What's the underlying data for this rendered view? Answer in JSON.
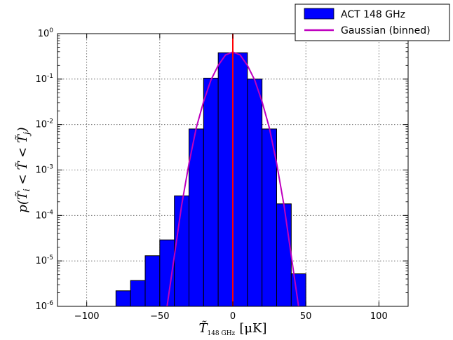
{
  "chart_data": {
    "type": "bar",
    "xlabel": {
      "main": "T̃",
      "sub": "148 GHz",
      "unit": "[μK]"
    },
    "ylabel": {
      "main": "p(T̃",
      "sub1": "i",
      "mid": " < T̃ < T̃",
      "sub2": "j",
      "end": ")"
    },
    "xlim": [
      -120,
      120
    ],
    "ylim_log10": [
      -6,
      0
    ],
    "log_y": true,
    "grid": true,
    "legend_position": "top-right",
    "x_ticks": [
      {
        "value": -100,
        "label": "−100"
      },
      {
        "value": -50,
        "label": "−50"
      },
      {
        "value": 0,
        "label": "0"
      },
      {
        "value": 50,
        "label": "50"
      },
      {
        "value": 100,
        "label": "100"
      }
    ],
    "y_ticks": [
      {
        "exp": -6,
        "base": "10",
        "power": "-6"
      },
      {
        "exp": -5,
        "base": "10",
        "power": "-5"
      },
      {
        "exp": -4,
        "base": "10",
        "power": "-4"
      },
      {
        "exp": -3,
        "base": "10",
        "power": "-3"
      },
      {
        "exp": -2,
        "base": "10",
        "power": "-2"
      },
      {
        "exp": -1,
        "base": "10",
        "power": "-1"
      },
      {
        "exp": 0,
        "base": "10",
        "power": "0"
      }
    ],
    "histogram": {
      "name": "ACT 148 GHz",
      "color": "#0000ff",
      "bin_edges": [
        -80,
        -70,
        -60,
        -50,
        -40,
        -30,
        -20,
        -10,
        0,
        10,
        20,
        30,
        40,
        50
      ],
      "values": [
        2.2e-06,
        3.7e-06,
        1.3e-05,
        2.9e-05,
        0.00027,
        0.008,
        0.105,
        0.38,
        0.38,
        0.1,
        0.008,
        0.00018,
        5.2e-06
      ]
    },
    "gaussian": {
      "name": "Gaussian (binned)",
      "color": "#bf00bf",
      "x": [
        -45,
        -40,
        -35,
        -30,
        -25,
        -20,
        -15,
        -10,
        -5,
        0,
        5,
        10,
        15,
        20,
        25,
        30,
        35,
        40,
        45
      ],
      "y": [
        1e-06,
        1.3e-05,
        0.00017,
        0.0014,
        0.0085,
        0.032,
        0.095,
        0.2,
        0.34,
        0.395,
        0.34,
        0.2,
        0.095,
        0.032,
        0.0085,
        0.0014,
        0.00017,
        1.3e-05,
        1e-06
      ]
    },
    "vline": {
      "x": 0,
      "color": "#ff0000"
    }
  },
  "colors": {
    "grid": "#555555",
    "frame": "#000000"
  }
}
